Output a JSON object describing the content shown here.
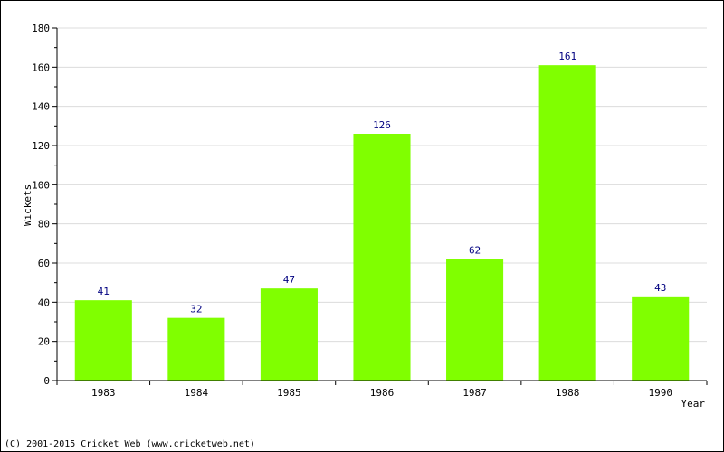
{
  "chart_data": {
    "type": "bar",
    "categories": [
      "1983",
      "1984",
      "1985",
      "1986",
      "1987",
      "1988",
      "1990"
    ],
    "values": [
      41,
      32,
      47,
      126,
      62,
      161,
      43
    ],
    "title": "",
    "xlabel": "Year",
    "ylabel": "Wickets",
    "ylim": [
      0,
      180
    ],
    "yticks": [
      0,
      20,
      40,
      60,
      80,
      100,
      120,
      140,
      160,
      180
    ],
    "grid": true,
    "bar_color": "#80ff00",
    "label_color": "#000080"
  },
  "footer": "(C) 2001-2015 Cricket Web (www.cricketweb.net)"
}
